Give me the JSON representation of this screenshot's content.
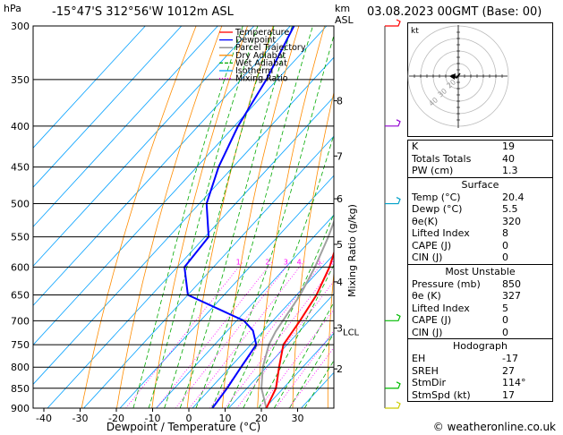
{
  "header": {
    "location": "-15°47'S  312°56'W  1012m  ASL",
    "datetime": "03.08.2023  00GMT  (Base: 00)",
    "left_unit": "hPa",
    "right_unit_km": "km",
    "right_unit_asl": "ASL"
  },
  "legend": [
    {
      "label": "Temperature",
      "color": "#ff0000"
    },
    {
      "label": "Dewpoint",
      "color": "#0000ff"
    },
    {
      "label": "Parcel Trajectory",
      "color": "#808080"
    },
    {
      "label": "Dry Adiabat",
      "color": "#ff8c00"
    },
    {
      "label": "Wet Adiabat",
      "color": "#00aa00"
    },
    {
      "label": "Isotherm",
      "color": "#00a0ff"
    },
    {
      "label": "Mixing Ratio",
      "color": "#ff00ff"
    }
  ],
  "chart_data": {
    "type": "skew-t",
    "xlabel": "Dewpoint / Temperature (°C)",
    "ylabel_right": "Mixing Ratio (g/kg)",
    "pressure_levels": [
      300,
      350,
      400,
      450,
      500,
      550,
      600,
      650,
      700,
      750,
      800,
      850,
      900
    ],
    "x_ticks": [
      -40,
      -30,
      -20,
      -10,
      0,
      10,
      20,
      30
    ],
    "km_ticks": [
      {
        "km": "8",
        "p": 372
      },
      {
        "km": "7",
        "p": 436
      },
      {
        "km": "6",
        "p": 493
      },
      {
        "km": "5",
        "p": 562
      },
      {
        "km": "4",
        "p": 626
      },
      {
        "km": "3",
        "p": 715
      },
      {
        "km": "2",
        "p": 804
      }
    ],
    "lcl": {
      "label": "LCL",
      "p": 722
    },
    "mixing_ratio_labels": [
      "1",
      "2",
      "3",
      "4",
      "6",
      "8",
      "10",
      "15",
      "20",
      "25"
    ],
    "mixing_ratio_values": [
      1,
      2,
      3,
      4,
      6,
      8,
      10,
      15,
      20,
      25
    ],
    "mixing_ratio_label_p": 597,
    "temperature": [
      {
        "p": 900,
        "t": 20.4
      },
      {
        "p": 850,
        "t": 18.0
      },
      {
        "p": 800,
        "t": 13.5
      },
      {
        "p": 750,
        "t": 9.0
      },
      {
        "p": 700,
        "t": 7.5
      },
      {
        "p": 650,
        "t": 5.5
      },
      {
        "p": 600,
        "t": 2.0
      },
      {
        "p": 550,
        "t": -3.0
      },
      {
        "p": 500,
        "t": -8.0
      },
      {
        "p": 450,
        "t": -13.5
      },
      {
        "p": 400,
        "t": -20.0
      },
      {
        "p": 350,
        "t": -27.5
      },
      {
        "p": 300,
        "t": -36.0
      }
    ],
    "dewpoint": [
      {
        "p": 900,
        "t": 5.5
      },
      {
        "p": 850,
        "t": 4.5
      },
      {
        "p": 800,
        "t": 3.0
      },
      {
        "p": 750,
        "t": 1.5
      },
      {
        "p": 720,
        "t": -3.0
      },
      {
        "p": 700,
        "t": -8.0
      },
      {
        "p": 650,
        "t": -30.0
      },
      {
        "p": 600,
        "t": -38.0
      },
      {
        "p": 550,
        "t": -39.0
      },
      {
        "p": 500,
        "t": -48.0
      },
      {
        "p": 450,
        "t": -54.0
      },
      {
        "p": 400,
        "t": -59.0
      },
      {
        "p": 350,
        "t": -63.0
      },
      {
        "p": 300,
        "t": -69.0
      }
    ],
    "parcel": [
      {
        "p": 900,
        "t": 20.4
      },
      {
        "p": 850,
        "t": 14.0
      },
      {
        "p": 800,
        "t": 9.0
      },
      {
        "p": 750,
        "t": 5.0
      },
      {
        "p": 722,
        "t": 3.5
      },
      {
        "p": 650,
        "t": 1.0
      },
      {
        "p": 600,
        "t": -2.0
      },
      {
        "p": 550,
        "t": -6.0
      },
      {
        "p": 500,
        "t": -11.0
      },
      {
        "p": 450,
        "t": -17.0
      },
      {
        "p": 400,
        "t": -24.0
      },
      {
        "p": 350,
        "t": -32.0
      },
      {
        "p": 300,
        "t": -41.0
      }
    ],
    "wind_barb_levels": [
      300,
      400,
      500,
      700,
      850,
      900
    ],
    "wind_barb_colors": [
      "#ff0000",
      "#9400d3",
      "#00a0c8",
      "#00bb00",
      "#00bb00",
      "#cccc00"
    ]
  },
  "hodograph": {
    "unit": "kt",
    "ring_labels": [
      "20",
      "30",
      "40"
    ]
  },
  "indices": {
    "basic": [
      {
        "label": "K",
        "value": "19"
      },
      {
        "label": "Totals Totals",
        "value": "40"
      },
      {
        "label": "PW (cm)",
        "value": "1.3"
      }
    ],
    "surface_title": "Surface",
    "surface": [
      {
        "label": "Temp (°C)",
        "value": "20.4"
      },
      {
        "label": "Dewp (°C)",
        "value": "5.5"
      },
      {
        "label": "θe(K)",
        "value": "320"
      },
      {
        "label": "Lifted Index",
        "value": "8"
      },
      {
        "label": "CAPE (J)",
        "value": "0"
      },
      {
        "label": "CIN (J)",
        "value": "0"
      }
    ],
    "mu_title": "Most Unstable",
    "mu": [
      {
        "label": "Pressure (mb)",
        "value": "850"
      },
      {
        "label": "θe (K)",
        "value": "327"
      },
      {
        "label": "Lifted Index",
        "value": "5"
      },
      {
        "label": "CAPE (J)",
        "value": "0"
      },
      {
        "label": "CIN (J)",
        "value": "0"
      }
    ],
    "hodo_title": "Hodograph",
    "hodo": [
      {
        "label": "EH",
        "value": "-17"
      },
      {
        "label": "SREH",
        "value": "27"
      },
      {
        "label": "StmDir",
        "value": "114°"
      },
      {
        "label": "StmSpd (kt)",
        "value": "17"
      }
    ]
  },
  "credit": "© weatheronline.co.uk"
}
